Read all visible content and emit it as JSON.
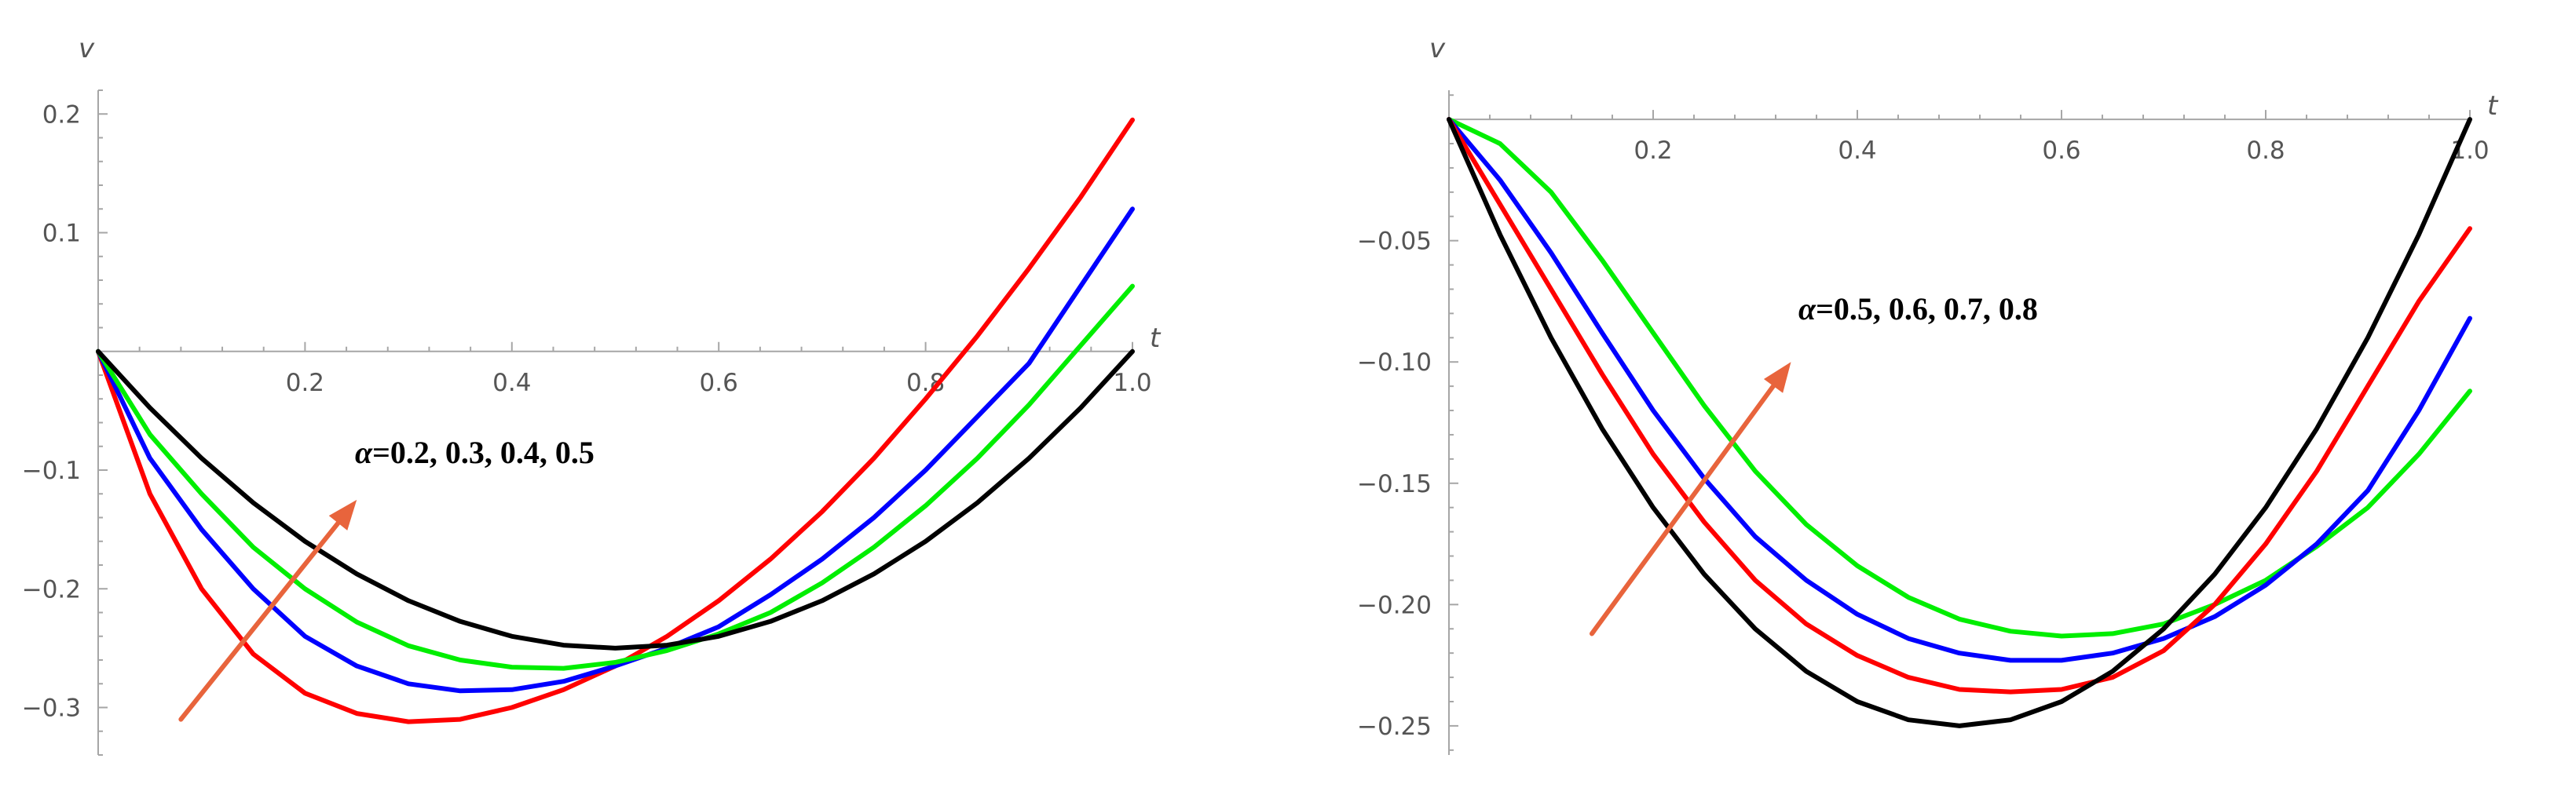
{
  "chart_data": [
    {
      "type": "line",
      "xlabel": "t",
      "ylabel": "v",
      "xlim": [
        0,
        1.0
      ],
      "ylim": [
        -0.34,
        0.22
      ],
      "x_ticks": [
        0.2,
        0.4,
        0.6,
        0.8,
        1.0
      ],
      "x_tick_labels": [
        "0.2",
        "0.4",
        "0.6",
        "0.8",
        "1.0"
      ],
      "y_ticks": [
        0.2,
        0.1,
        -0.1,
        -0.2,
        -0.3
      ],
      "y_tick_labels": [
        "0.2",
        "0.1",
        "−0.1",
        "−0.2",
        "−0.3"
      ],
      "annotation": "=0.2, 0.3, 0.4, 0.5",
      "annotation_symbol": "α",
      "arrow": {
        "from": [
          0.08,
          -0.31
        ],
        "to": [
          0.25,
          -0.125
        ],
        "color": "#e8643c"
      },
      "series": [
        {
          "color": "#ff0000",
          "x": [
            0,
            0.05,
            0.1,
            0.15,
            0.2,
            0.25,
            0.3,
            0.35,
            0.4,
            0.45,
            0.5,
            0.55,
            0.6,
            0.65,
            0.7,
            0.75,
            0.8,
            0.85,
            0.9,
            0.95,
            1.0
          ],
          "y": [
            0,
            -0.12,
            -0.2,
            -0.255,
            -0.288,
            -0.305,
            -0.312,
            -0.31,
            -0.3,
            -0.285,
            -0.265,
            -0.24,
            -0.21,
            -0.175,
            -0.135,
            -0.09,
            -0.04,
            0.013,
            0.07,
            0.13,
            0.195
          ]
        },
        {
          "color": "#0000ff",
          "x": [
            0,
            0.05,
            0.1,
            0.15,
            0.2,
            0.25,
            0.3,
            0.35,
            0.4,
            0.45,
            0.5,
            0.55,
            0.6,
            0.65,
            0.7,
            0.75,
            0.8,
            0.85,
            0.9,
            0.95,
            1.0
          ],
          "y": [
            0,
            -0.09,
            -0.15,
            -0.2,
            -0.24,
            -0.265,
            -0.28,
            -0.286,
            -0.285,
            -0.278,
            -0.265,
            -0.25,
            -0.232,
            -0.205,
            -0.175,
            -0.14,
            -0.1,
            -0.055,
            -0.01,
            0.055,
            0.12
          ]
        },
        {
          "color": "#00ee00",
          "x": [
            0,
            0.05,
            0.1,
            0.15,
            0.2,
            0.25,
            0.3,
            0.35,
            0.4,
            0.45,
            0.5,
            0.55,
            0.6,
            0.65,
            0.7,
            0.75,
            0.8,
            0.85,
            0.9,
            0.95,
            1.0
          ],
          "y": [
            0,
            -0.07,
            -0.12,
            -0.165,
            -0.2,
            -0.228,
            -0.248,
            -0.26,
            -0.266,
            -0.267,
            -0.262,
            -0.252,
            -0.238,
            -0.22,
            -0.195,
            -0.165,
            -0.13,
            -0.09,
            -0.045,
            0.005,
            0.055
          ]
        },
        {
          "color": "#000000",
          "x": [
            0,
            0.05,
            0.1,
            0.15,
            0.2,
            0.25,
            0.3,
            0.35,
            0.4,
            0.45,
            0.5,
            0.55,
            0.6,
            0.65,
            0.7,
            0.75,
            0.8,
            0.85,
            0.9,
            0.95,
            1.0
          ],
          "y": [
            0,
            -0.0475,
            -0.09,
            -0.1275,
            -0.16,
            -0.1875,
            -0.21,
            -0.2275,
            -0.24,
            -0.2475,
            -0.25,
            -0.2475,
            -0.24,
            -0.2275,
            -0.21,
            -0.1875,
            -0.16,
            -0.1275,
            -0.09,
            -0.0475,
            0
          ]
        }
      ]
    },
    {
      "type": "line",
      "xlabel": "t",
      "ylabel": "v",
      "xlim": [
        0,
        1.0
      ],
      "ylim": [
        -0.262,
        0.012
      ],
      "x_ticks": [
        0.2,
        0.4,
        0.6,
        0.8,
        1.0
      ],
      "x_tick_labels": [
        "0.2",
        "0.4",
        "0.6",
        "0.8",
        "1.0"
      ],
      "y_ticks": [
        -0.05,
        -0.1,
        -0.15,
        -0.2,
        -0.25
      ],
      "y_tick_labels": [
        "−0.05",
        "−0.10",
        "−0.15",
        "−0.20",
        "−0.25"
      ],
      "annotation": "=0.5, 0.6, 0.7, 0.8",
      "annotation_symbol": "α",
      "arrow": {
        "from": [
          0.14,
          -0.212
        ],
        "to": [
          0.335,
          -0.1
        ],
        "color": "#e8643c"
      },
      "series": [
        {
          "color": "#00ee00",
          "x": [
            0,
            0.05,
            0.1,
            0.15,
            0.2,
            0.25,
            0.3,
            0.35,
            0.4,
            0.45,
            0.5,
            0.55,
            0.6,
            0.65,
            0.7,
            0.75,
            0.8,
            0.85,
            0.9,
            0.95,
            1.0
          ],
          "y": [
            0,
            -0.01,
            -0.03,
            -0.058,
            -0.088,
            -0.118,
            -0.145,
            -0.167,
            -0.184,
            -0.197,
            -0.206,
            -0.211,
            -0.213,
            -0.212,
            -0.208,
            -0.2,
            -0.19,
            -0.176,
            -0.16,
            -0.138,
            -0.112
          ]
        },
        {
          "color": "#0000ff",
          "x": [
            0,
            0.05,
            0.1,
            0.15,
            0.2,
            0.25,
            0.3,
            0.35,
            0.4,
            0.45,
            0.5,
            0.55,
            0.6,
            0.65,
            0.7,
            0.75,
            0.8,
            0.85,
            0.9,
            0.95,
            1.0
          ],
          "y": [
            0,
            -0.025,
            -0.055,
            -0.088,
            -0.12,
            -0.148,
            -0.172,
            -0.19,
            -0.204,
            -0.214,
            -0.22,
            -0.223,
            -0.223,
            -0.22,
            -0.214,
            -0.205,
            -0.192,
            -0.175,
            -0.153,
            -0.12,
            -0.082
          ]
        },
        {
          "color": "#ff0000",
          "x": [
            0,
            0.05,
            0.1,
            0.15,
            0.2,
            0.25,
            0.3,
            0.35,
            0.4,
            0.45,
            0.5,
            0.55,
            0.6,
            0.65,
            0.7,
            0.75,
            0.8,
            0.85,
            0.9,
            0.95,
            1.0
          ],
          "y": [
            0,
            -0.035,
            -0.07,
            -0.105,
            -0.138,
            -0.166,
            -0.19,
            -0.208,
            -0.221,
            -0.23,
            -0.235,
            -0.236,
            -0.235,
            -0.23,
            -0.219,
            -0.2,
            -0.175,
            -0.145,
            -0.11,
            -0.075,
            -0.045
          ]
        },
        {
          "color": "#000000",
          "x": [
            0,
            0.05,
            0.1,
            0.15,
            0.2,
            0.25,
            0.3,
            0.35,
            0.4,
            0.45,
            0.5,
            0.55,
            0.6,
            0.65,
            0.7,
            0.75,
            0.8,
            0.85,
            0.9,
            0.95,
            1.0
          ],
          "y": [
            0,
            -0.0475,
            -0.09,
            -0.1275,
            -0.16,
            -0.1875,
            -0.21,
            -0.2275,
            -0.24,
            -0.2475,
            -0.25,
            -0.2475,
            -0.24,
            -0.2275,
            -0.21,
            -0.1875,
            -0.16,
            -0.1275,
            -0.09,
            -0.0475,
            0
          ]
        }
      ]
    }
  ]
}
